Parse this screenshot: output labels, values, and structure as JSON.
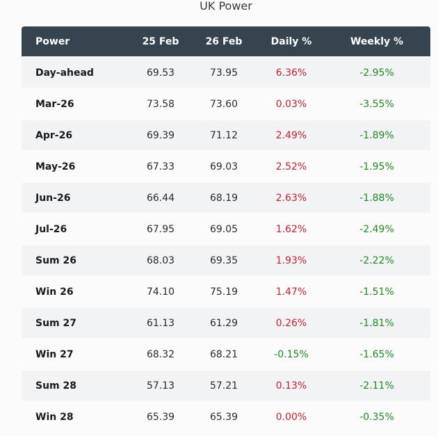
{
  "title": "UK Power",
  "colors": {
    "header_bg": "#36444f",
    "positive": "#d0202a",
    "negative": "#1e8a1e",
    "alt_row": "#f1f3f5"
  },
  "headers": [
    "Power",
    "25 Feb",
    "26 Feb",
    "Daily %",
    "Weekly %"
  ],
  "rows": [
    {
      "name": "Day-ahead",
      "feb25": "69.53",
      "feb26": "73.95",
      "daily": "6.36%",
      "weekly": "-2.95%"
    },
    {
      "name": "Mar-26",
      "feb25": "73.58",
      "feb26": "73.60",
      "daily": "0.03%",
      "weekly": "-3.55%"
    },
    {
      "name": "Apr-26",
      "feb25": "69.39",
      "feb26": "71.12",
      "daily": "2.49%",
      "weekly": "-1.89%"
    },
    {
      "name": "May-26",
      "feb25": "67.33",
      "feb26": "69.03",
      "daily": "2.52%",
      "weekly": "-1.95%"
    },
    {
      "name": "Jun-26",
      "feb25": "66.44",
      "feb26": "68.19",
      "daily": "2.63%",
      "weekly": "-1.88%"
    },
    {
      "name": "Jul-26",
      "feb25": "67.95",
      "feb26": "69.05",
      "daily": "1.62%",
      "weekly": "-2.49%"
    },
    {
      "name": "Sum 26",
      "feb25": "68.03",
      "feb26": "69.35",
      "daily": "1.93%",
      "weekly": "-2.22%"
    },
    {
      "name": "Win 26",
      "feb25": "74.10",
      "feb26": "75.19",
      "daily": "1.47%",
      "weekly": "-1.51%"
    },
    {
      "name": "Sum 27",
      "feb25": "61.13",
      "feb26": "61.29",
      "daily": "0.26%",
      "weekly": "-1.81%"
    },
    {
      "name": "Win 27",
      "feb25": "68.32",
      "feb26": "68.21",
      "daily": "-0.15%",
      "weekly": "-1.65%"
    },
    {
      "name": "Sum 28",
      "feb25": "57.13",
      "feb26": "57.21",
      "daily": "0.13%",
      "weekly": "-2.11%"
    },
    {
      "name": "Win 28",
      "feb25": "65.39",
      "feb26": "65.39",
      "daily": "0.00%",
      "weekly": "-0.35%"
    }
  ]
}
